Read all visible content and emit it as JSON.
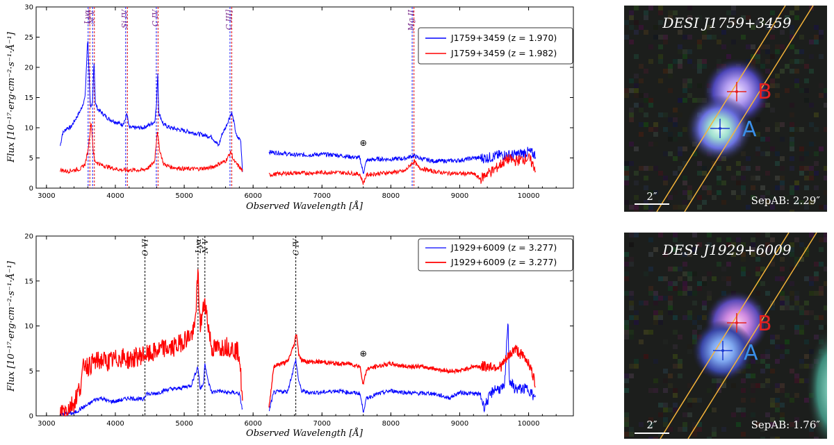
{
  "chart_data": [
    {
      "type": "line",
      "xlabel": "Observed Wavelength [Å]",
      "ylabel": "Flux [10⁻¹⁷·erg·cm⁻²·s⁻¹·Å⁻¹]",
      "xlim": [
        2850,
        10650
      ],
      "ylim": [
        0,
        30
      ],
      "xticks": [
        3000,
        4000,
        5000,
        6000,
        7000,
        8000,
        9000,
        10000
      ],
      "yticks": [
        0,
        5,
        10,
        15,
        20,
        25,
        30
      ],
      "legend_position": "top-right",
      "telluric_symbol": "⊕",
      "telluric_at": [
        7600,
        7.0
      ],
      "gap": [
        5850,
        6230
      ],
      "series": [
        {
          "name": "J1759+3459 (z = 1.970)",
          "color": "#0000ff",
          "points": [
            [
              3200,
              7
            ],
            [
              3230,
              9
            ],
            [
              3300,
              10
            ],
            [
              3350,
              10
            ],
            [
              3400,
              11
            ],
            [
              3450,
              12
            ],
            [
              3500,
              13
            ],
            [
              3560,
              15
            ],
            [
              3600,
              25
            ],
            [
              3625,
              17
            ],
            [
              3640,
              13
            ],
            [
              3670,
              14
            ],
            [
              3690,
              21.5
            ],
            [
              3710,
              14
            ],
            [
              3750,
              13
            ],
            [
              3800,
              12.5
            ],
            [
              3900,
              11.5
            ],
            [
              4000,
              11
            ],
            [
              4100,
              10.5
            ],
            [
              4150,
              11.5
            ],
            [
              4165,
              12.5
            ],
            [
              4200,
              10
            ],
            [
              4300,
              10
            ],
            [
              4400,
              10
            ],
            [
              4500,
              10.5
            ],
            [
              4570,
              11
            ],
            [
              4600,
              14
            ],
            [
              4615,
              19.5
            ],
            [
              4630,
              12.5
            ],
            [
              4700,
              10.5
            ],
            [
              4800,
              10
            ],
            [
              5000,
              9.5
            ],
            [
              5200,
              9
            ],
            [
              5400,
              8.5
            ],
            [
              5500,
              7
            ],
            [
              5550,
              9
            ],
            [
              5600,
              10
            ],
            [
              5650,
              11.5
            ],
            [
              5690,
              12.5
            ],
            [
              5720,
              11
            ],
            [
              5760,
              8.5
            ],
            [
              5820,
              8
            ],
            [
              5850,
              2.2
            ]
          ],
          "points_b": [
            [
              6230,
              6
            ],
            [
              6400,
              5.8
            ],
            [
              6600,
              5.5
            ],
            [
              6800,
              5.5
            ],
            [
              7000,
              5.6
            ],
            [
              7200,
              5.5
            ],
            [
              7400,
              5.2
            ],
            [
              7550,
              5
            ],
            [
              7600,
              2.5
            ],
            [
              7650,
              4.6
            ],
            [
              7800,
              4.8
            ],
            [
              8000,
              4.8
            ],
            [
              8200,
              4.9
            ],
            [
              8330,
              5.4
            ],
            [
              8400,
              5
            ],
            [
              8600,
              4.5
            ],
            [
              8800,
              4.5
            ],
            [
              9000,
              4.6
            ],
            [
              9200,
              5
            ],
            [
              9400,
              5
            ],
            [
              9600,
              5.5
            ],
            [
              9800,
              5.5
            ],
            [
              10000,
              6
            ],
            [
              10100,
              5.5
            ]
          ]
        },
        {
          "name": "J1759+3459 (z = 1.982)",
          "color": "#ff0000",
          "points": [
            [
              3200,
              3
            ],
            [
              3300,
              2.8
            ],
            [
              3400,
              3
            ],
            [
              3500,
              3.2
            ],
            [
              3560,
              4
            ],
            [
              3600,
              6
            ],
            [
              3650,
              11
            ],
            [
              3680,
              6
            ],
            [
              3700,
              4.5
            ],
            [
              3800,
              3.8
            ],
            [
              3900,
              3.5
            ],
            [
              4000,
              3.2
            ],
            [
              4100,
              3
            ],
            [
              4200,
              3
            ],
            [
              4300,
              3
            ],
            [
              4400,
              3
            ],
            [
              4500,
              3.5
            ],
            [
              4570,
              4.5
            ],
            [
              4610,
              9.5
            ],
            [
              4640,
              6.5
            ],
            [
              4700,
              4
            ],
            [
              4800,
              3.5
            ],
            [
              5000,
              3.2
            ],
            [
              5200,
              3.2
            ],
            [
              5400,
              3.4
            ],
            [
              5500,
              4
            ],
            [
              5600,
              4.5
            ],
            [
              5680,
              6
            ],
            [
              5720,
              4.5
            ],
            [
              5800,
              3.5
            ],
            [
              5850,
              2.8
            ]
          ],
          "points_b": [
            [
              6230,
              2.2
            ],
            [
              6400,
              2.4
            ],
            [
              6600,
              2.5
            ],
            [
              6800,
              2.5
            ],
            [
              7000,
              2.6
            ],
            [
              7200,
              2.6
            ],
            [
              7400,
              2.5
            ],
            [
              7550,
              2.3
            ],
            [
              7600,
              0.8
            ],
            [
              7650,
              2.2
            ],
            [
              7800,
              2.4
            ],
            [
              8000,
              2.6
            ],
            [
              8200,
              2.8
            ],
            [
              8340,
              4.5
            ],
            [
              8400,
              3.4
            ],
            [
              8600,
              2.8
            ],
            [
              8800,
              2.5
            ],
            [
              9000,
              2.4
            ],
            [
              9200,
              2.4
            ],
            [
              9300,
              1.5
            ],
            [
              9400,
              2.5
            ],
            [
              9500,
              3
            ],
            [
              9600,
              4
            ],
            [
              9700,
              4.8
            ],
            [
              9800,
              4.5
            ],
            [
              10000,
              5
            ],
            [
              10100,
              3.2
            ]
          ]
        }
      ],
      "lines": [
        {
          "label": "Lyα",
          "x": 3615,
          "style": "blue-red"
        },
        {
          "label": "N V",
          "x": 3680,
          "style": "blue-red"
        },
        {
          "label": "Si IV",
          "x": 4160,
          "style": "blue-red"
        },
        {
          "label": "C IV",
          "x": 4605,
          "style": "blue-red"
        },
        {
          "label": "C III]",
          "x": 5675,
          "style": "blue-red"
        },
        {
          "label": "Mg II",
          "x": 8320,
          "style": "blue-red"
        }
      ]
    },
    {
      "type": "line",
      "xlabel": "Observed Wavelength [Å]",
      "ylabel": "Flux [10⁻¹⁷·erg·cm⁻²·s⁻¹·Å⁻¹]",
      "xlim": [
        2850,
        10650
      ],
      "ylim": [
        0,
        20
      ],
      "xticks": [
        3000,
        4000,
        5000,
        6000,
        7000,
        8000,
        9000,
        10000
      ],
      "yticks": [
        0,
        5,
        10,
        15,
        20
      ],
      "legend_position": "top-right",
      "telluric_symbol": "⊕",
      "telluric_at": [
        7600,
        6.6
      ],
      "gap": [
        5850,
        6230
      ],
      "series": [
        {
          "name": "J1929+6009 (z = 3.277)",
          "color": "#0000ff",
          "points": [
            [
              3200,
              0.2
            ],
            [
              3400,
              0.3
            ],
            [
              3500,
              0.8
            ],
            [
              3600,
              1.2
            ],
            [
              3700,
              1.8
            ],
            [
              3800,
              2
            ],
            [
              3900,
              1.6
            ],
            [
              4000,
              1.6
            ],
            [
              4100,
              1.8
            ],
            [
              4200,
              2
            ],
            [
              4300,
              1.9
            ],
            [
              4400,
              1.8
            ],
            [
              4450,
              2.5
            ],
            [
              4500,
              2.4
            ],
            [
              4600,
              2.5
            ],
            [
              4700,
              2.8
            ],
            [
              4800,
              3
            ],
            [
              4900,
              3
            ],
            [
              5000,
              3.2
            ],
            [
              5100,
              3.4
            ],
            [
              5200,
              5.5
            ],
            [
              5230,
              3
            ],
            [
              5280,
              3.5
            ],
            [
              5300,
              6
            ],
            [
              5340,
              4
            ],
            [
              5400,
              2.6
            ],
            [
              5500,
              2.8
            ],
            [
              5600,
              2.6
            ],
            [
              5700,
              2.6
            ],
            [
              5800,
              2.5
            ],
            [
              5850,
              0.5
            ]
          ],
          "points_b": [
            [
              6230,
              0.5
            ],
            [
              6300,
              2.6
            ],
            [
              6400,
              2.7
            ],
            [
              6500,
              2.7
            ],
            [
              6620,
              6.2
            ],
            [
              6660,
              4
            ],
            [
              6700,
              2.8
            ],
            [
              6800,
              2.6
            ],
            [
              7000,
              2.6
            ],
            [
              7200,
              2.8
            ],
            [
              7400,
              2.6
            ],
            [
              7550,
              2.5
            ],
            [
              7600,
              0.5
            ],
            [
              7650,
              2
            ],
            [
              7800,
              2.4
            ],
            [
              8000,
              2.8
            ],
            [
              8200,
              2.6
            ],
            [
              8400,
              2.5
            ],
            [
              8600,
              2.5
            ],
            [
              8850,
              2
            ],
            [
              9000,
              2.6
            ],
            [
              9300,
              2.4
            ],
            [
              9350,
              1
            ],
            [
              9500,
              3
            ],
            [
              9650,
              3
            ],
            [
              9700,
              11
            ],
            [
              9720,
              4
            ],
            [
              9800,
              3
            ],
            [
              10000,
              3
            ],
            [
              10100,
              1.8
            ]
          ]
        },
        {
          "name": "J1929+6009 (z = 3.277)",
          "color": "#ff0000",
          "points": [
            [
              3200,
              0.5
            ],
            [
              3300,
              0.8
            ],
            [
              3400,
              1.5
            ],
            [
              3500,
              3.5
            ],
            [
              3550,
              6
            ],
            [
              3600,
              5.5
            ],
            [
              3700,
              6
            ],
            [
              3800,
              6.2
            ],
            [
              3900,
              6
            ],
            [
              4000,
              6.3
            ],
            [
              4100,
              6.5
            ],
            [
              4200,
              6.2
            ],
            [
              4300,
              6.5
            ],
            [
              4400,
              6.8
            ],
            [
              4500,
              6.8
            ],
            [
              4600,
              7.2
            ],
            [
              4700,
              7.5
            ],
            [
              4800,
              7.5
            ],
            [
              4900,
              7.8
            ],
            [
              5000,
              8.5
            ],
            [
              5100,
              9
            ],
            [
              5150,
              9.5
            ],
            [
              5200,
              15.8
            ],
            [
              5230,
              10
            ],
            [
              5260,
              11
            ],
            [
              5300,
              13
            ],
            [
              5330,
              11
            ],
            [
              5400,
              7.5
            ],
            [
              5500,
              7.5
            ],
            [
              5600,
              7.8
            ],
            [
              5700,
              7.5
            ],
            [
              5800,
              7
            ],
            [
              5850,
              1
            ]
          ],
          "points_b": [
            [
              6230,
              0.8
            ],
            [
              6300,
              5.5
            ],
            [
              6400,
              5.8
            ],
            [
              6500,
              6
            ],
            [
              6600,
              8
            ],
            [
              6630,
              9.3
            ],
            [
              6660,
              7
            ],
            [
              6700,
              6.2
            ],
            [
              6800,
              6
            ],
            [
              7000,
              6
            ],
            [
              7200,
              5.8
            ],
            [
              7400,
              5.8
            ],
            [
              7550,
              5.5
            ],
            [
              7600,
              3.5
            ],
            [
              7650,
              5.2
            ],
            [
              7800,
              5.5
            ],
            [
              8000,
              5.8
            ],
            [
              8200,
              5.5
            ],
            [
              8400,
              5.5
            ],
            [
              8600,
              5.3
            ],
            [
              8800,
              5
            ],
            [
              9000,
              5
            ],
            [
              9200,
              5.5
            ],
            [
              9400,
              5.5
            ],
            [
              9600,
              5.5
            ],
            [
              9800,
              7.5
            ],
            [
              10000,
              6
            ],
            [
              10100,
              3.5
            ]
          ]
        }
      ],
      "lines": [
        {
          "label": "O VI",
          "x": 4430,
          "style": "black"
        },
        {
          "label": "Lyα",
          "x": 5200,
          "style": "black"
        },
        {
          "label": "N V",
          "x": 5300,
          "style": "black"
        },
        {
          "label": "C IV",
          "x": 6620,
          "style": "black"
        }
      ]
    }
  ],
  "images": [
    {
      "title": "DESI J1759+3459",
      "label_a": "A",
      "label_b": "B",
      "scale_label": "2″",
      "sep_label": "SepAB: 2.29″"
    },
    {
      "title": "DESI J1929+6009",
      "label_a": "A",
      "label_b": "B",
      "scale_label": "2″",
      "sep_label": "SepAB: 1.76″"
    }
  ],
  "colors": {
    "quasar_a": "#3a8fe8",
    "quasar_b": "#e32020",
    "slit": "#f5b43a",
    "image_bg": "#1c1e1c"
  }
}
